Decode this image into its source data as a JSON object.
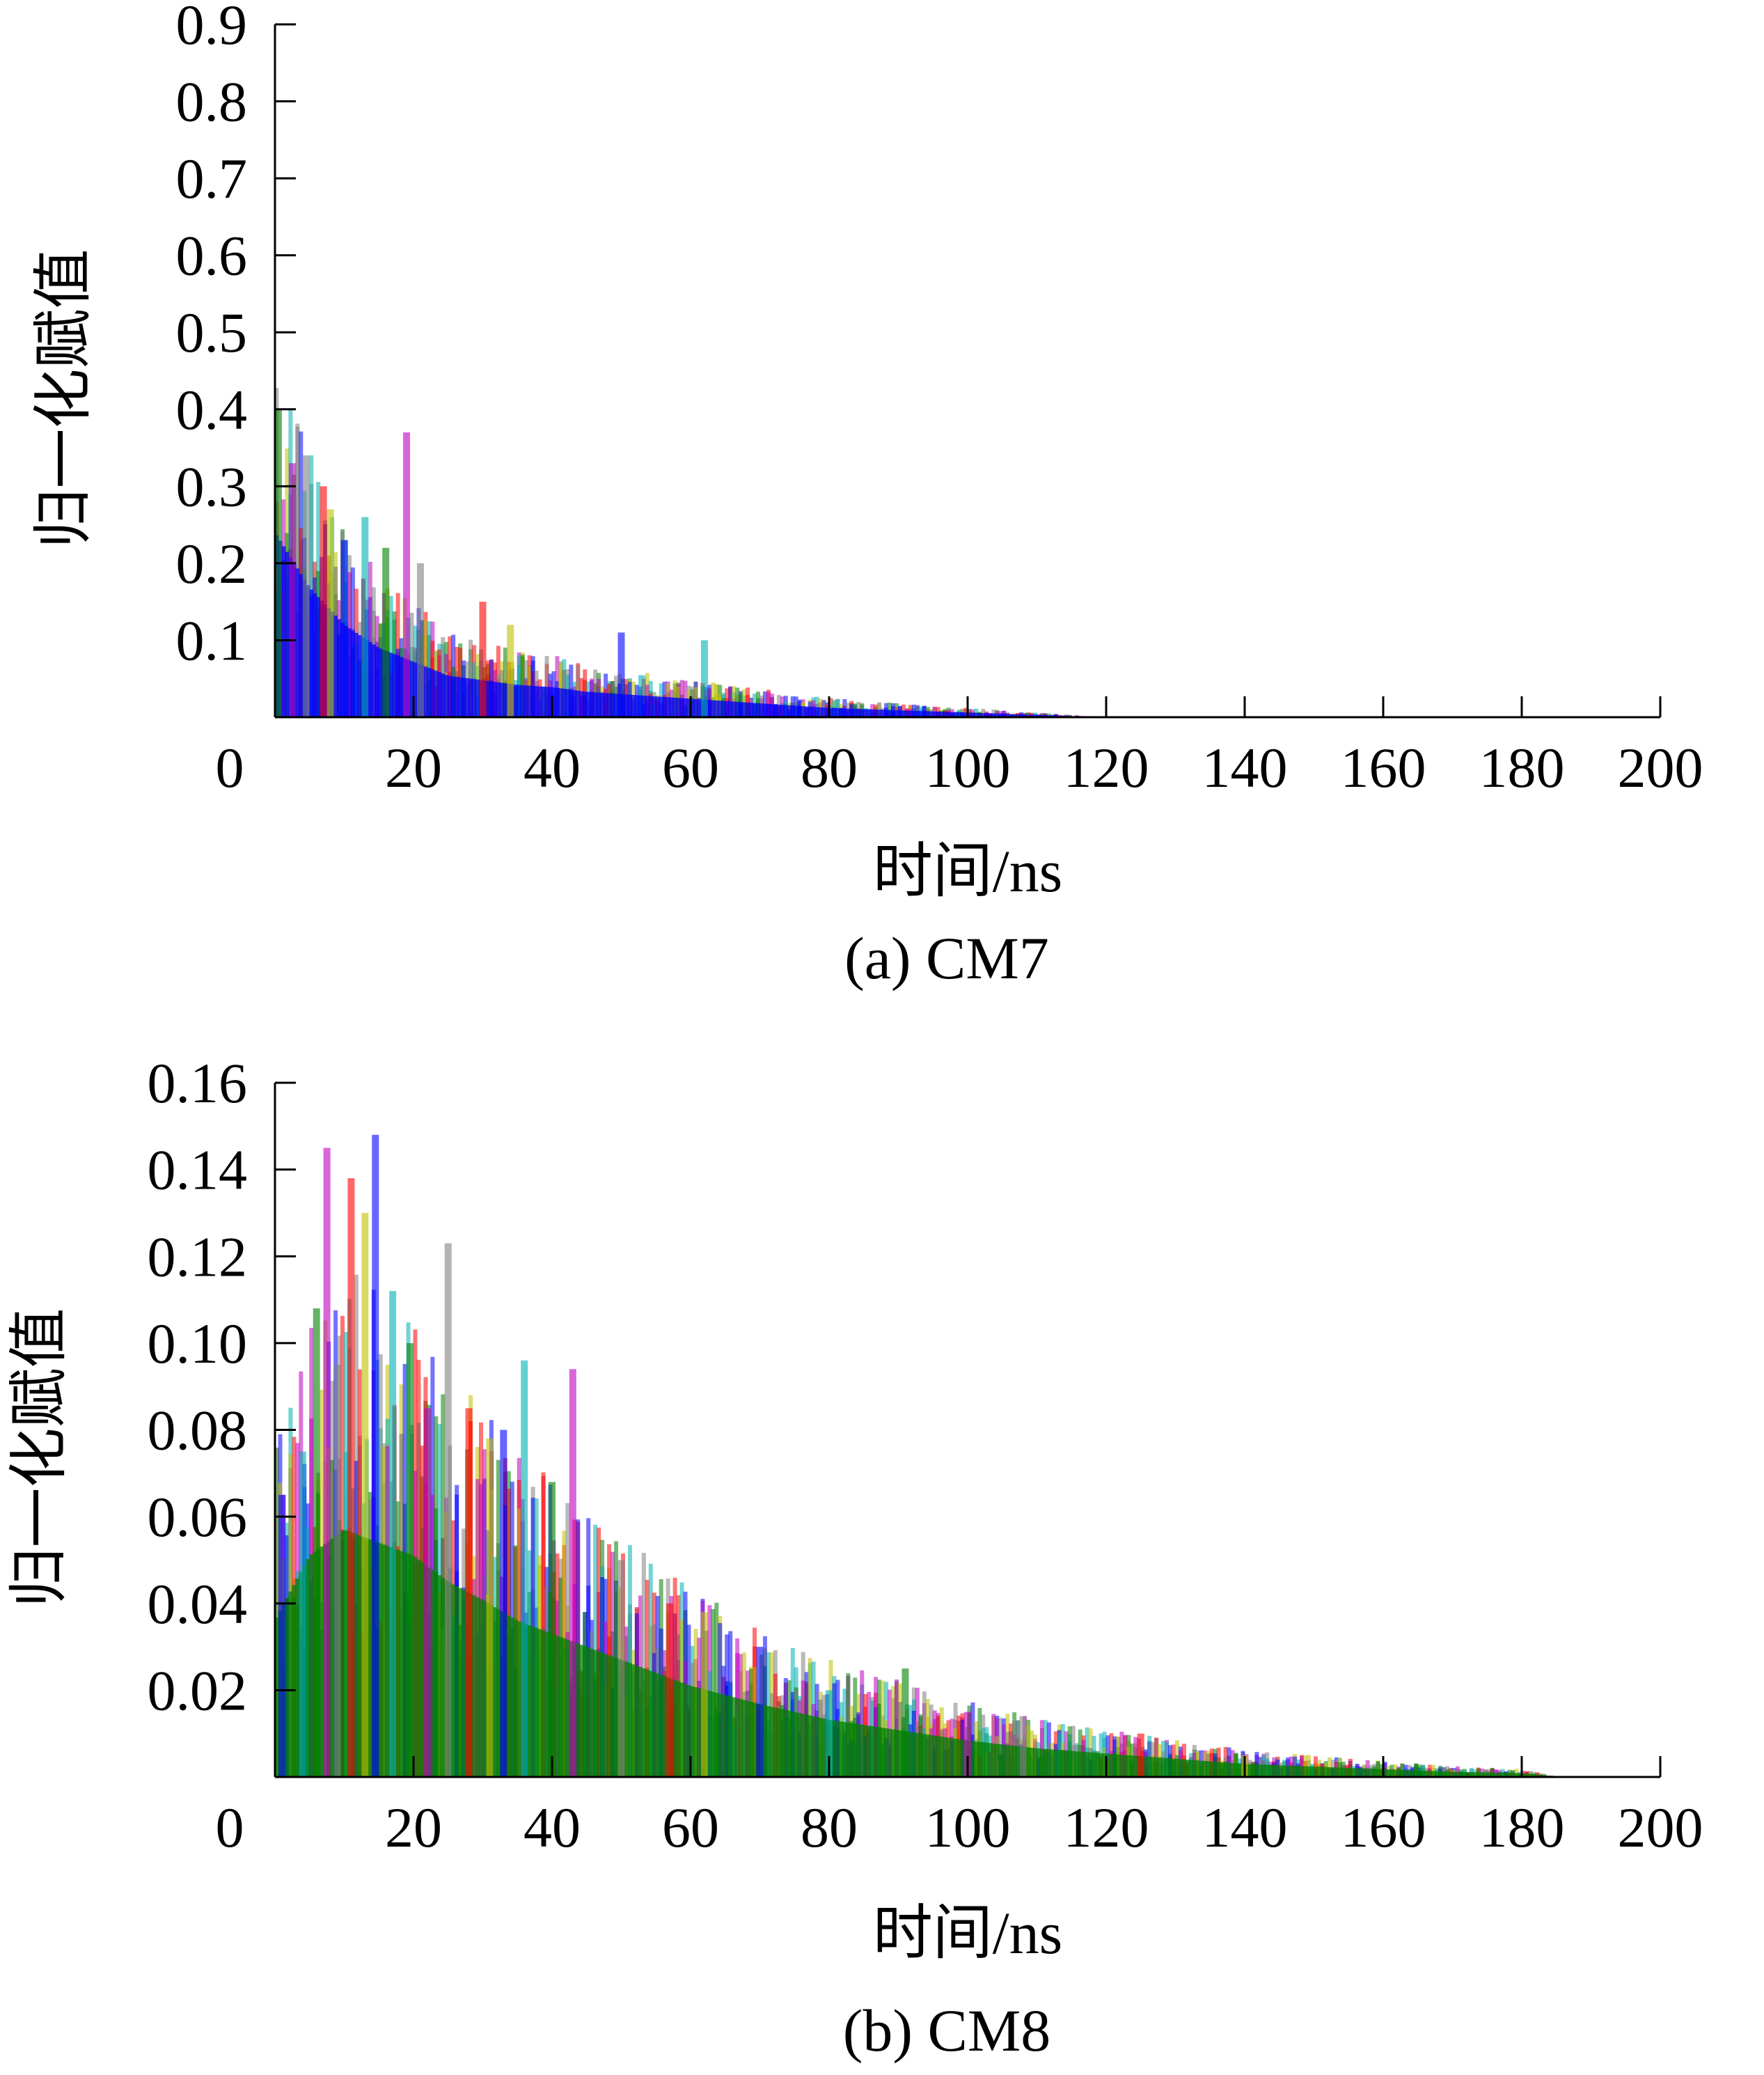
{
  "chart_data": [
    {
      "type": "bar",
      "caption": "(a)  CM7",
      "xlabel": "时间/ns",
      "ylabel": "归一化赋值",
      "xlim": [
        0,
        200
      ],
      "ylim": [
        0,
        0.9
      ],
      "x_ticks": [
        0,
        20,
        40,
        60,
        80,
        100,
        120,
        140,
        160,
        180,
        200
      ],
      "y_ticks": [
        0.1,
        0.2,
        0.3,
        0.4,
        0.5,
        0.6,
        0.7,
        0.8,
        0.9
      ],
      "y_tick_labels": [
        "0.1",
        "0.2",
        "0.3",
        "0.4",
        "0.5",
        "0.6",
        "0.7",
        "0.8",
        "0.9"
      ],
      "grid": false,
      "legend": "none",
      "series_colors": [
        "#008000",
        "#0000ff",
        "#ff0000",
        "#c000c0",
        "#00b0b0",
        "#c0c000",
        "#808080"
      ],
      "envelope": {
        "x": [
          0,
          5,
          10,
          15,
          20,
          25,
          30,
          35,
          40,
          45,
          50,
          55,
          60,
          65,
          70,
          80,
          90,
          100,
          110,
          120
        ],
        "y": [
          0.4,
          0.28,
          0.2,
          0.15,
          0.12,
          0.09,
          0.08,
          0.07,
          0.065,
          0.055,
          0.05,
          0.045,
          0.04,
          0.035,
          0.03,
          0.02,
          0.015,
          0.01,
          0.005,
          0.0
        ]
      },
      "peaks": [
        {
          "x": 0.5,
          "y": 0.4
        },
        {
          "x": 2.5,
          "y": 0.33
        },
        {
          "x": 4.5,
          "y": 0.34
        },
        {
          "x": 7,
          "y": 0.3
        },
        {
          "x": 8,
          "y": 0.27
        },
        {
          "x": 10,
          "y": 0.23
        },
        {
          "x": 13,
          "y": 0.26
        },
        {
          "x": 16,
          "y": 0.22
        },
        {
          "x": 19,
          "y": 0.37
        },
        {
          "x": 21,
          "y": 0.2
        },
        {
          "x": 30,
          "y": 0.15
        },
        {
          "x": 34,
          "y": 0.12
        },
        {
          "x": 50,
          "y": 0.11
        },
        {
          "x": 62,
          "y": 0.1
        }
      ]
    },
    {
      "type": "bar",
      "caption": "(b)  CM8",
      "xlabel": "时间/ns",
      "ylabel": "归一化赋值",
      "xlim": [
        0,
        200
      ],
      "ylim": [
        0,
        0.16
      ],
      "x_ticks": [
        0,
        20,
        40,
        60,
        80,
        100,
        120,
        140,
        160,
        180,
        200
      ],
      "y_ticks": [
        0.02,
        0.04,
        0.06,
        0.08,
        0.1,
        0.12,
        0.14,
        0.16
      ],
      "y_tick_labels": [
        "0.02",
        "0.04",
        "0.06",
        "0.08",
        "0.10",
        "0.12",
        "0.14",
        "0.16"
      ],
      "grid": false,
      "legend": "none",
      "series_colors": [
        "#008000",
        "#0000ff",
        "#ff0000",
        "#c000c0",
        "#00b0b0",
        "#c0c000",
        "#808080"
      ],
      "envelope": {
        "x": [
          0,
          5,
          10,
          15,
          20,
          25,
          30,
          35,
          40,
          45,
          50,
          55,
          60,
          70,
          80,
          90,
          100,
          110,
          120,
          130,
          140,
          150,
          160,
          170,
          180,
          186
        ],
        "y": [
          0.06,
          0.085,
          0.095,
          0.09,
          0.085,
          0.075,
          0.068,
          0.06,
          0.055,
          0.05,
          0.045,
          0.04,
          0.035,
          0.028,
          0.022,
          0.018,
          0.014,
          0.011,
          0.009,
          0.007,
          0.005,
          0.004,
          0.003,
          0.002,
          0.0015,
          0.0
        ]
      },
      "peaks": [
        {
          "x": 1,
          "y": 0.065
        },
        {
          "x": 4,
          "y": 0.075
        },
        {
          "x": 6,
          "y": 0.108
        },
        {
          "x": 7.5,
          "y": 0.145
        },
        {
          "x": 9,
          "y": 0.095
        },
        {
          "x": 11,
          "y": 0.138
        },
        {
          "x": 13,
          "y": 0.13
        },
        {
          "x": 14.5,
          "y": 0.148
        },
        {
          "x": 17,
          "y": 0.112
        },
        {
          "x": 19.5,
          "y": 0.1
        },
        {
          "x": 22,
          "y": 0.085
        },
        {
          "x": 25,
          "y": 0.123
        },
        {
          "x": 28,
          "y": 0.085
        },
        {
          "x": 31,
          "y": 0.078
        },
        {
          "x": 33,
          "y": 0.08
        },
        {
          "x": 36,
          "y": 0.096
        },
        {
          "x": 40,
          "y": 0.068
        },
        {
          "x": 43,
          "y": 0.094
        },
        {
          "x": 50,
          "y": 0.05
        },
        {
          "x": 57,
          "y": 0.04
        },
        {
          "x": 62,
          "y": 0.038
        },
        {
          "x": 70,
          "y": 0.03
        },
        {
          "x": 80,
          "y": 0.02
        },
        {
          "x": 91,
          "y": 0.025
        },
        {
          "x": 100,
          "y": 0.015
        },
        {
          "x": 108,
          "y": 0.014
        },
        {
          "x": 125,
          "y": 0.01
        },
        {
          "x": 140,
          "y": 0.005
        }
      ]
    }
  ]
}
